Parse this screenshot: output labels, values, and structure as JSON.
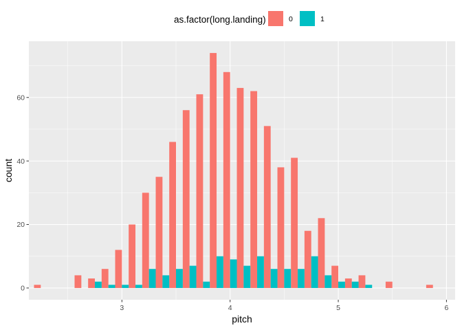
{
  "chart_data": {
    "type": "bar",
    "xlabel": "pitch",
    "ylabel": "count",
    "xlim": [
      2.14,
      6.08
    ],
    "ylim": [
      -3.7,
      77.7
    ],
    "xticks": [
      3,
      4,
      5,
      6
    ],
    "yticks": [
      0,
      20,
      40,
      60
    ],
    "xtick_labels": [
      "3",
      "4",
      "5",
      "6"
    ],
    "ytick_labels": [
      "0",
      "20",
      "40",
      "60"
    ],
    "grid": true,
    "legend": {
      "title": "as.factor(long.landing)",
      "position": "top",
      "entries": [
        {
          "label": "0",
          "color": "#F8766D"
        },
        {
          "label": "1",
          "color": "#00BFC4"
        }
      ]
    },
    "bin_width": 0.125,
    "bin_centers": [
      2.25,
      2.375,
      2.5,
      2.625,
      2.75,
      2.875,
      3.0,
      3.125,
      3.25,
      3.375,
      3.5,
      3.625,
      3.75,
      3.875,
      4.0,
      4.125,
      4.25,
      4.375,
      4.5,
      4.625,
      4.75,
      4.875,
      5.0,
      5.125,
      5.25,
      5.375,
      5.5,
      5.625,
      5.75,
      5.875
    ],
    "series": [
      {
        "name": "0",
        "color": "#F8766D",
        "values": [
          1,
          0,
          0,
          4,
          3,
          6,
          12,
          20,
          30,
          35,
          46,
          56,
          61,
          74,
          68,
          63,
          62,
          51,
          38,
          41,
          18,
          22,
          7,
          3,
          4,
          0,
          2,
          0,
          0,
          1
        ]
      },
      {
        "name": "1",
        "color": "#00BFC4",
        "values": [
          0,
          0,
          0,
          0,
          2,
          1,
          1,
          1,
          6,
          4,
          6,
          7,
          2,
          10,
          9,
          7,
          10,
          6,
          6,
          6,
          10,
          4,
          2,
          2,
          1,
          0,
          0,
          0,
          0,
          0
        ]
      }
    ]
  }
}
